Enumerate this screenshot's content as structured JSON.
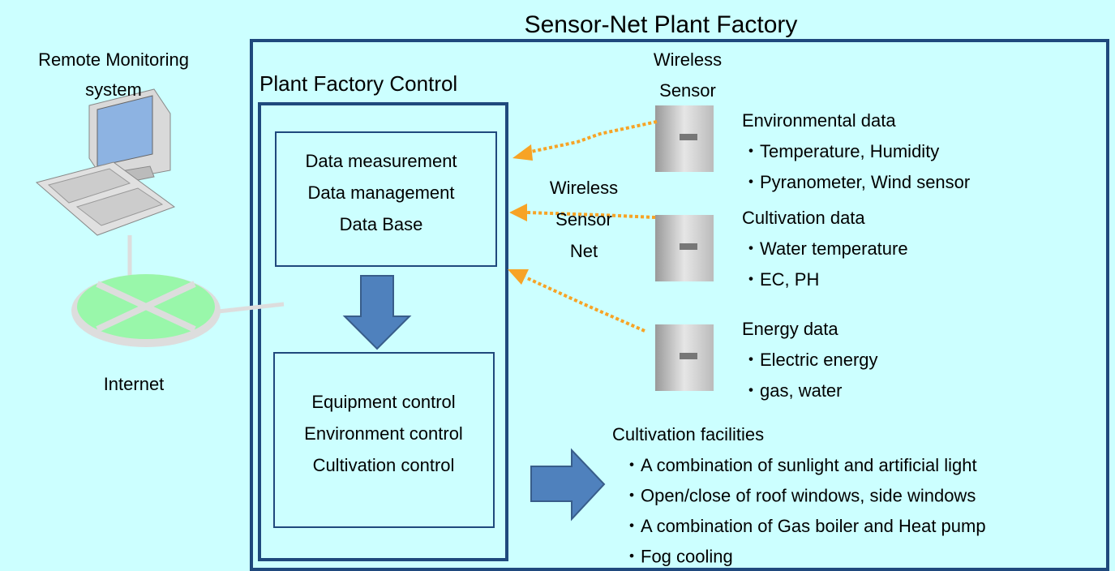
{
  "title": "Sensor-Net Plant Factory",
  "remote_monitoring": {
    "lines": [
      "Remote Monitoring",
      "system"
    ]
  },
  "internet": {
    "label": "Internet"
  },
  "control": {
    "title": "Plant Factory Control",
    "measurement_box": [
      "Data measurement",
      "Data management",
      "Data Base"
    ],
    "control_box": [
      "Equipment control",
      "Environment control",
      "Cultivation control"
    ]
  },
  "wireless_sensor": [
    "Wireless",
    "Sensor"
  ],
  "wireless_sensor_net": [
    "Wireless",
    "Sensor",
    "Net"
  ],
  "data_groups": [
    {
      "title": "Environmental data",
      "items": [
        "・Temperature, Humidity",
        "・Pyranometer, Wind sensor"
      ]
    },
    {
      "title": "Cultivation data",
      "items": [
        "・Water temperature",
        "・EC, PH"
      ]
    },
    {
      "title": "Energy data",
      "items": [
        "・Electric energy",
        "・gas, water"
      ]
    }
  ],
  "facilities": {
    "title": "Cultivation facilities",
    "items": [
      "・A combination of sunlight and artificial light",
      "・Open/close of roof windows, side windows",
      "・A combination of Gas boiler and Heat pump",
      "・Fog cooling"
    ]
  }
}
